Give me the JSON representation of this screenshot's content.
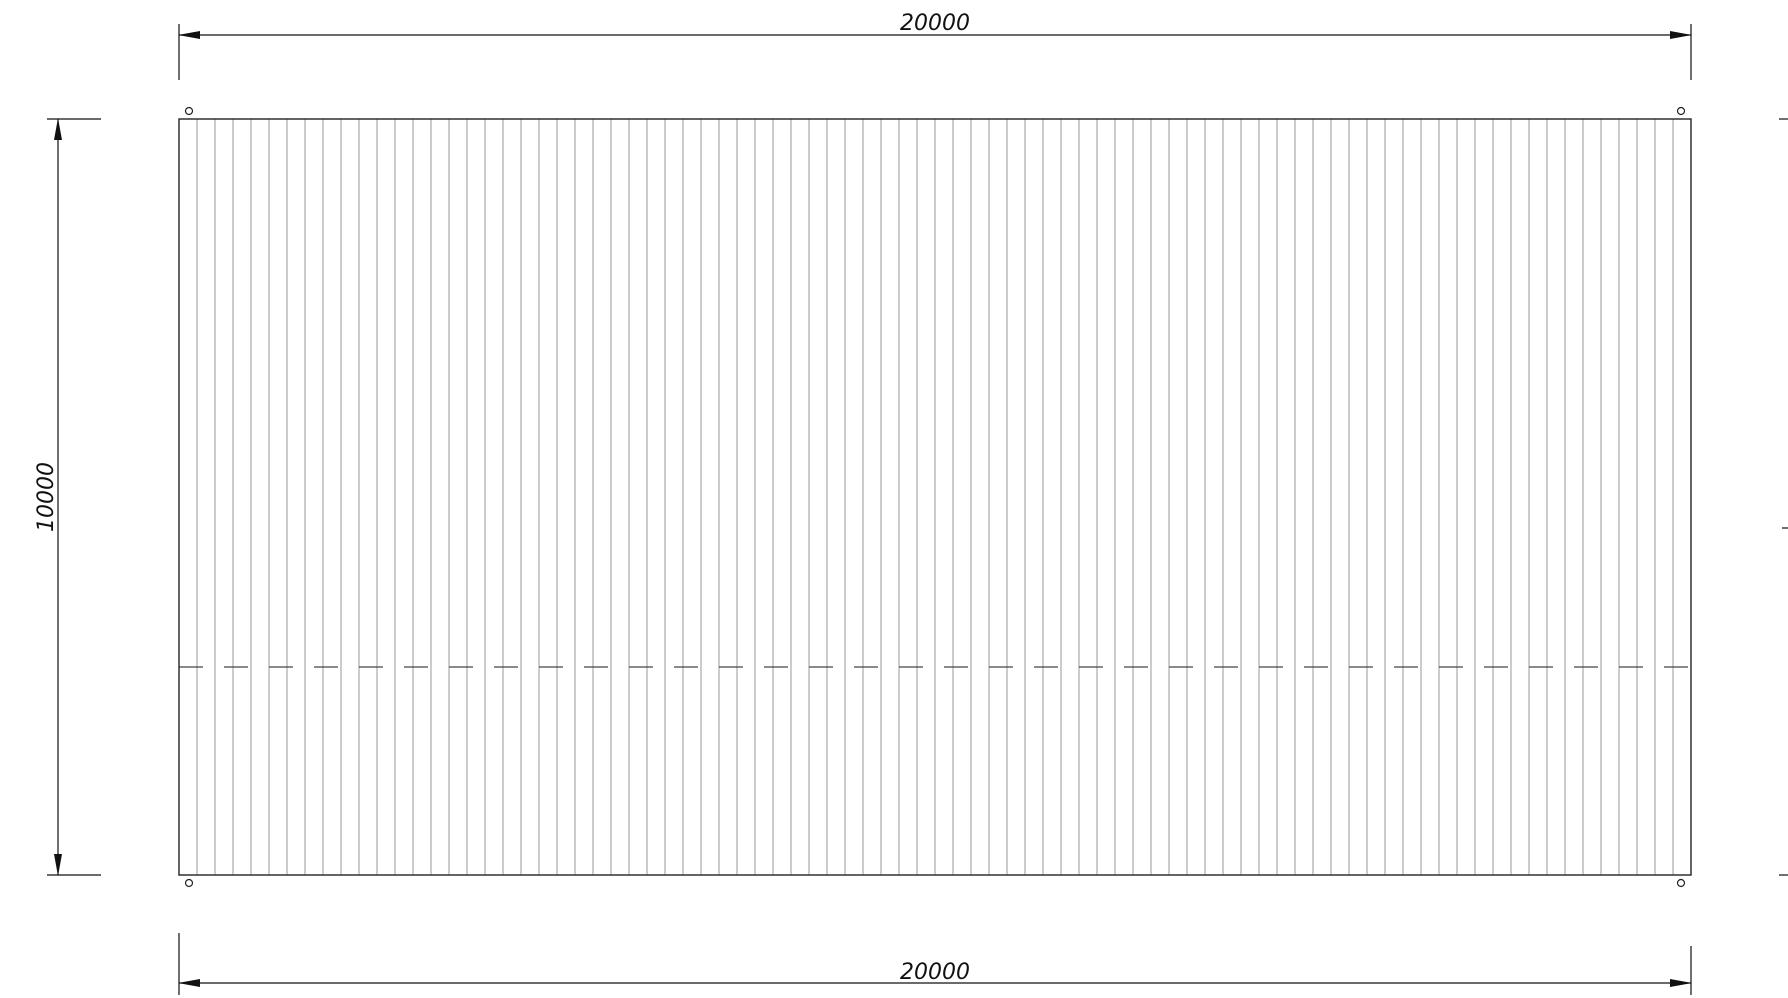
{
  "drawing": {
    "plan": {
      "width_mm": 20000,
      "height_mm": 10000,
      "panel_count": 84
    },
    "dimensions": {
      "top_width_label": "20000",
      "bottom_width_label": "20000",
      "left_height_label": "10000"
    },
    "colors": {
      "outline": "#222222",
      "panel_line": "#9a9a9a",
      "dimension": "#111111",
      "dash": "#444444"
    }
  }
}
